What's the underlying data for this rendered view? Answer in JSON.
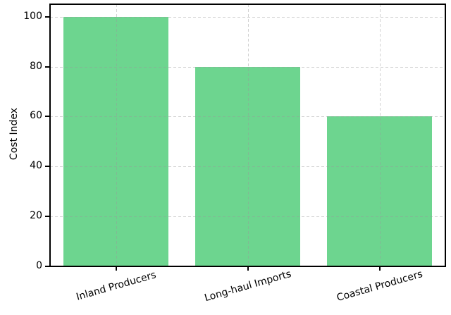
{
  "chart_data": {
    "type": "bar",
    "categories": [
      "Inland Producers",
      "Long-haul Imports",
      "Coastal Producers"
    ],
    "values": [
      100,
      80,
      60
    ],
    "title": "",
    "xlabel": "",
    "ylabel": "Cost Index",
    "ylim": [
      0,
      105
    ],
    "yticks": [
      0,
      20,
      40,
      60,
      80,
      100
    ],
    "bar_color": "#6DD58F",
    "bar_width_fraction": 0.8,
    "grid": true,
    "grid_line_style": "dashed",
    "grid_color": "#aaaaaa",
    "axis_color": "#000000",
    "x_tick_rotation_deg": 16,
    "legend_position": "none"
  }
}
